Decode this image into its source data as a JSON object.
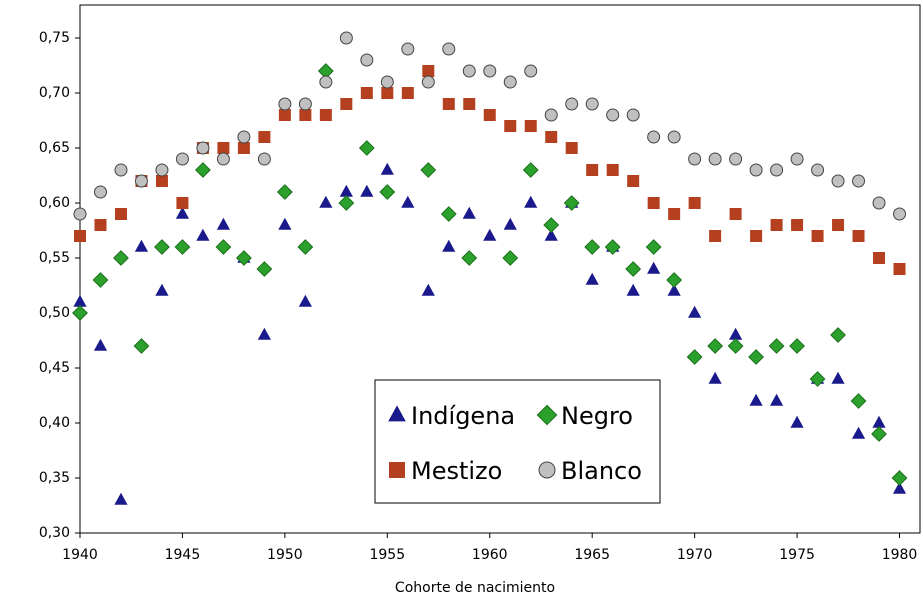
{
  "chart_data": {
    "type": "scatter",
    "x_label": "Cohorte de nacimiento",
    "x": [
      1940,
      1941,
      1942,
      1943,
      1944,
      1945,
      1946,
      1947,
      1948,
      1949,
      1950,
      1951,
      1952,
      1953,
      1954,
      1955,
      1956,
      1957,
      1958,
      1959,
      1960,
      1961,
      1962,
      1963,
      1964,
      1965,
      1966,
      1967,
      1968,
      1969,
      1970,
      1971,
      1972,
      1973,
      1974,
      1975,
      1976,
      1977,
      1978,
      1979,
      1980
    ],
    "xlim": [
      1940,
      1981
    ],
    "xticks": [
      1940,
      1945,
      1950,
      1955,
      1960,
      1965,
      1970,
      1975,
      1980
    ],
    "ylim": [
      0.3,
      0.78
    ],
    "yticks": [
      {
        "value": 0.3,
        "label": "0,30"
      },
      {
        "value": 0.35,
        "label": "0,35"
      },
      {
        "value": 0.4,
        "label": "0,40"
      },
      {
        "value": 0.45,
        "label": "0,45"
      },
      {
        "value": 0.5,
        "label": "0,50"
      },
      {
        "value": 0.55,
        "label": "0,55"
      },
      {
        "value": 0.6,
        "label": "0,60"
      },
      {
        "value": 0.65,
        "label": "0,65"
      },
      {
        "value": 0.7,
        "label": "0,70"
      },
      {
        "value": 0.75,
        "label": "0,75"
      }
    ],
    "legend": "lower-center",
    "series": [
      {
        "name": "Indígena",
        "color": "#1a1a8c",
        "marker": "triangle",
        "values": [
          0.51,
          0.47,
          0.33,
          0.56,
          0.52,
          0.59,
          0.57,
          0.58,
          0.55,
          0.48,
          0.58,
          0.51,
          0.6,
          0.61,
          0.61,
          0.63,
          0.6,
          0.52,
          0.56,
          0.59,
          0.57,
          0.58,
          0.6,
          0.57,
          0.6,
          0.53,
          0.56,
          0.52,
          0.54,
          0.52,
          0.5,
          0.44,
          0.48,
          0.42,
          0.42,
          0.4,
          0.44,
          0.44,
          0.39,
          0.4,
          0.34
        ]
      },
      {
        "name": "Negro",
        "color": "#2ca02c",
        "marker": "diamond",
        "values": [
          0.5,
          0.53,
          0.55,
          0.47,
          0.56,
          0.56,
          0.63,
          0.56,
          0.55,
          0.54,
          0.61,
          0.56,
          0.72,
          0.6,
          0.65,
          0.61,
          null,
          0.63,
          0.59,
          0.55,
          null,
          0.55,
          0.63,
          0.58,
          0.6,
          0.56,
          0.56,
          0.54,
          0.56,
          0.53,
          0.46,
          0.47,
          0.47,
          0.46,
          0.47,
          0.47,
          0.44,
          0.48,
          0.42,
          0.39,
          0.35
        ]
      },
      {
        "name": "Mestizo",
        "color": "#b5401f",
        "marker": "square",
        "values": [
          0.57,
          0.58,
          0.59,
          0.62,
          0.62,
          0.6,
          0.65,
          0.65,
          0.65,
          0.66,
          0.68,
          0.68,
          0.68,
          0.69,
          0.7,
          0.7,
          0.7,
          0.72,
          0.69,
          0.69,
          0.68,
          0.67,
          0.67,
          0.66,
          0.65,
          0.63,
          0.63,
          0.62,
          0.6,
          0.59,
          0.6,
          0.57,
          0.59,
          0.57,
          0.58,
          0.58,
          0.57,
          0.58,
          0.57,
          0.55,
          0.54
        ]
      },
      {
        "name": "Blanco",
        "color": "#c0c0c0",
        "marker": "circle",
        "values": [
          0.59,
          0.61,
          0.63,
          0.62,
          0.63,
          0.64,
          0.65,
          0.64,
          0.66,
          0.64,
          0.69,
          0.69,
          0.71,
          0.75,
          0.73,
          0.71,
          0.74,
          0.71,
          0.74,
          0.72,
          0.72,
          0.71,
          0.72,
          0.68,
          0.69,
          0.69,
          0.68,
          0.68,
          0.66,
          0.66,
          0.64,
          0.64,
          0.64,
          0.63,
          0.63,
          0.64,
          0.63,
          0.62,
          0.62,
          0.6,
          0.59
        ]
      }
    ]
  }
}
